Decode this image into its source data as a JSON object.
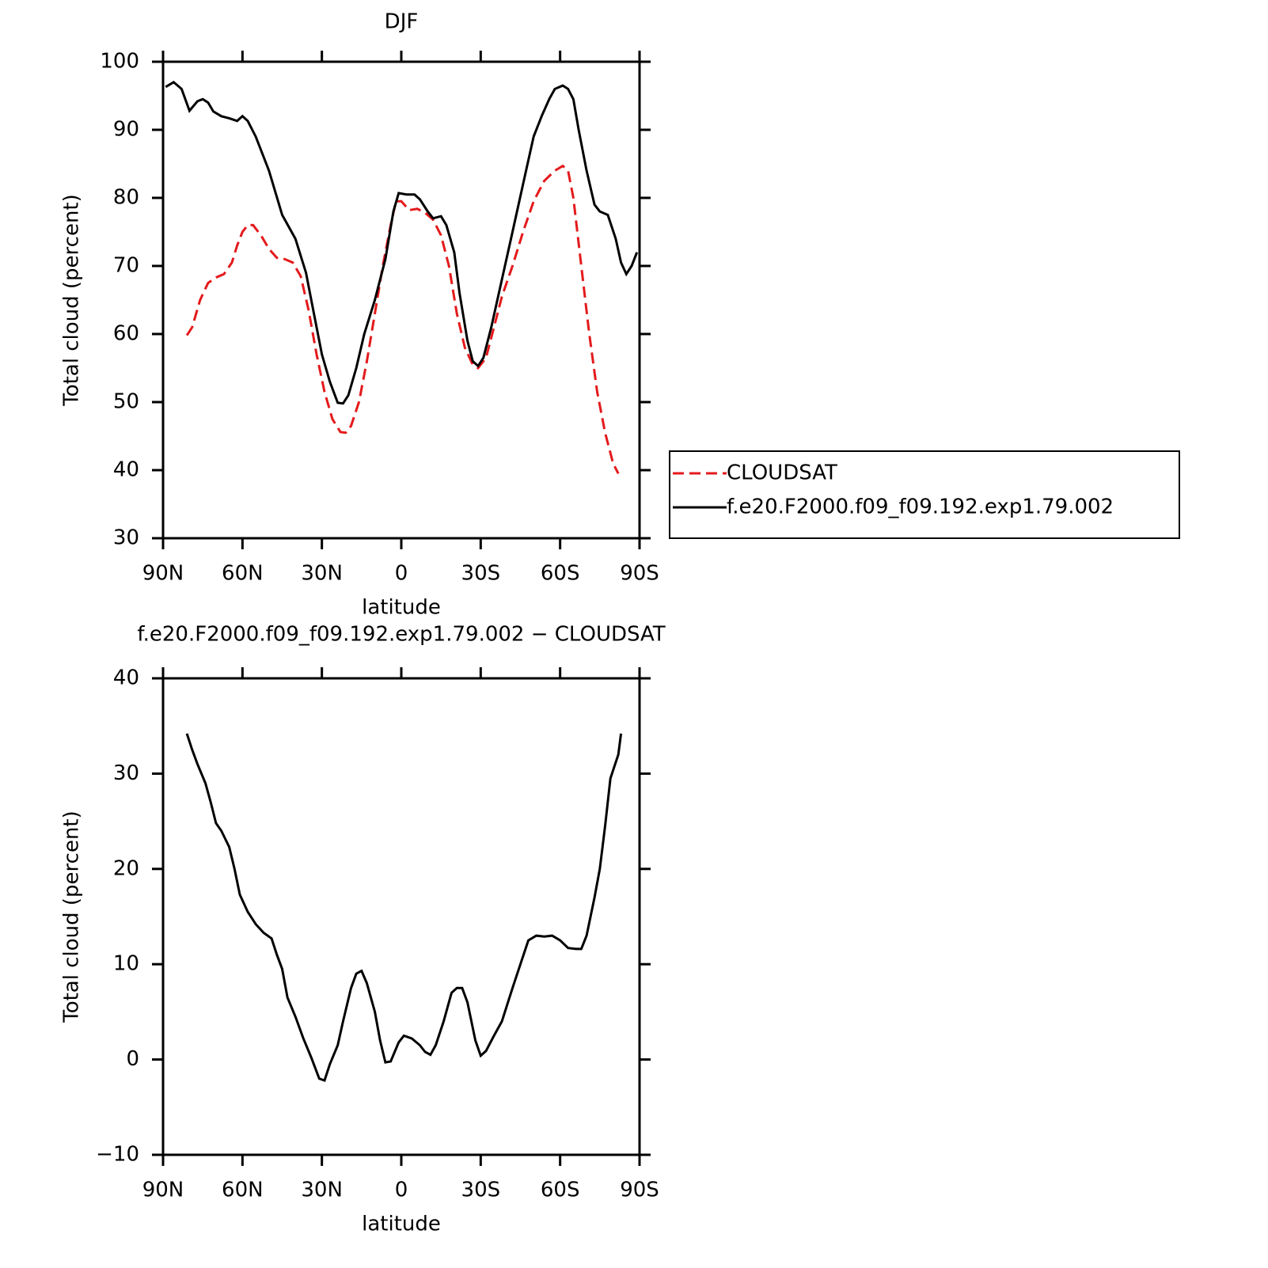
{
  "chart_data": [
    {
      "type": "line",
      "title": "DJF",
      "xlabel": "latitude",
      "ylabel": "Total cloud (percent)",
      "xlim": [
        90,
        -90
      ],
      "xticks": [
        {
          "value": 90,
          "label": "90N"
        },
        {
          "value": 60,
          "label": "60N"
        },
        {
          "value": 30,
          "label": "30N"
        },
        0,
        {
          "value": -30,
          "label": "30S"
        },
        {
          "value": -60,
          "label": "60S"
        },
        {
          "value": -90,
          "label": "90S"
        }
      ],
      "ylim": [
        30,
        100
      ],
      "yticks": [
        30,
        40,
        50,
        60,
        70,
        80,
        90,
        100
      ],
      "legend": "right",
      "series": [
        {
          "name": "CLOUDSAT",
          "color": "#e41a1c",
          "linestyle": "dashed",
          "x": [
            81,
            79,
            76,
            73,
            70,
            67,
            64,
            62,
            60,
            58,
            56,
            53,
            50,
            47,
            44,
            41,
            38,
            35,
            32,
            29,
            26,
            23,
            21,
            19,
            16,
            13,
            10,
            7,
            4,
            2,
            0,
            -3,
            -6,
            -9,
            -12,
            -15,
            -18,
            -21,
            -24,
            -27,
            -29,
            -32,
            -35,
            -38,
            -42,
            -46,
            -50,
            -54,
            -58,
            -61,
            -63,
            -65,
            -68,
            -71,
            -74,
            -77,
            -80,
            -82
          ],
          "values": [
            59.8,
            61,
            65,
            67.5,
            68.3,
            68.8,
            70.5,
            73,
            75,
            76,
            76,
            74.5,
            72.5,
            71.2,
            71,
            70.5,
            68.5,
            63.5,
            57,
            51.5,
            47.5,
            45.6,
            45.5,
            46.5,
            50,
            56,
            63,
            70,
            76,
            79.5,
            79.5,
            78.2,
            78.4,
            77.8,
            76.8,
            74.5,
            70,
            63,
            58,
            55.5,
            55,
            56.5,
            61,
            65.5,
            70,
            75,
            79.5,
            82.5,
            84,
            84.7,
            84,
            80,
            70,
            60,
            51.5,
            45.5,
            41,
            39.5
          ]
        },
        {
          "name": "f.e20.F2000.f09_f09.192.exp1.79.002",
          "color": "#000000",
          "linestyle": "solid",
          "x": [
            89,
            86,
            83,
            80,
            77,
            75,
            73,
            71,
            68,
            65,
            62,
            60,
            58,
            55,
            50,
            45,
            40,
            36,
            33,
            30,
            27,
            24,
            22,
            20,
            17,
            14,
            10,
            6,
            3,
            1,
            -2,
            -5,
            -7,
            -10,
            -12,
            -15,
            -17,
            -20,
            -22,
            -25,
            -27,
            -29,
            -31,
            -34,
            -38,
            -42,
            -46,
            -50,
            -53,
            -56,
            -58,
            -61,
            -63,
            -65,
            -67,
            -70,
            -73,
            -75,
            -78,
            -81,
            -83,
            -85,
            -87,
            -89
          ],
          "values": [
            96.3,
            97,
            96,
            92.8,
            94.2,
            94.5,
            94,
            92.7,
            92,
            91.7,
            91.3,
            92,
            91.3,
            89,
            84,
            77.5,
            74,
            69,
            63,
            57,
            53,
            49.9,
            49.8,
            51,
            55,
            60,
            65,
            71,
            78,
            80.7,
            80.5,
            80.5,
            79.8,
            78,
            77,
            77.3,
            76,
            72,
            66,
            59,
            56,
            55.3,
            56.5,
            61,
            68,
            75,
            82,
            89,
            92,
            94.6,
            96,
            96.5,
            96,
            94.5,
            90,
            84,
            79,
            78,
            77.5,
            74,
            70.5,
            68.8,
            70,
            72
          ]
        }
      ]
    },
    {
      "type": "line",
      "title": "f.e20.F2000.f09_f09.192.exp1.79.002 − CLOUDSAT",
      "xlabel": "latitude",
      "ylabel": "Total cloud (percent)",
      "xlim": [
        90,
        -90
      ],
      "xticks": [
        {
          "value": 90,
          "label": "90N"
        },
        {
          "value": 60,
          "label": "60N"
        },
        {
          "value": 30,
          "label": "30N"
        },
        0,
        {
          "value": -30,
          "label": "30S"
        },
        {
          "value": -60,
          "label": "60S"
        },
        {
          "value": -90,
          "label": "90S"
        }
      ],
      "ylim": [
        -10,
        40
      ],
      "yticks": [
        {
          "value": -10,
          "label": "−10"
        },
        0,
        10,
        20,
        30,
        40
      ],
      "series": [
        {
          "color": "#000000",
          "linestyle": "solid",
          "x": [
            81,
            79,
            77,
            74,
            72,
            70,
            68,
            65,
            63,
            61,
            58,
            55,
            52,
            49,
            47,
            45,
            43,
            40,
            37,
            34,
            31,
            29,
            27,
            24,
            22,
            19,
            17,
            15,
            13,
            10,
            8,
            6,
            4,
            1,
            -1,
            -4,
            -7,
            -9,
            -11,
            -13,
            -16,
            -19,
            -21,
            -23,
            -25,
            -28,
            -30,
            -32,
            -35,
            -38,
            -42,
            -45,
            -48,
            -51,
            -54,
            -57,
            -60,
            -63,
            -66,
            -68,
            -70,
            -73,
            -75,
            -77,
            -79,
            -82,
            -83
          ],
          "values": [
            34.2,
            32.5,
            31,
            29,
            27,
            24.8,
            24,
            22.3,
            20,
            17.3,
            15.5,
            14.2,
            13.3,
            12.7,
            11,
            9.5,
            6.5,
            4.5,
            2.2,
            0.2,
            -2,
            -2.2,
            -0.5,
            1.5,
            4,
            7.5,
            9,
            9.3,
            8,
            5,
            2,
            -0.3,
            -0.2,
            1.8,
            2.5,
            2.2,
            1.5,
            0.8,
            0.5,
            1.5,
            4,
            7,
            7.5,
            7.5,
            6,
            2,
            0.4,
            0.9,
            2.5,
            4,
            7.5,
            10,
            12.5,
            13,
            12.9,
            13,
            12.5,
            11.7,
            11.6,
            11.6,
            13,
            17,
            20,
            24.5,
            29.5,
            32,
            34.2
          ]
        }
      ]
    }
  ]
}
